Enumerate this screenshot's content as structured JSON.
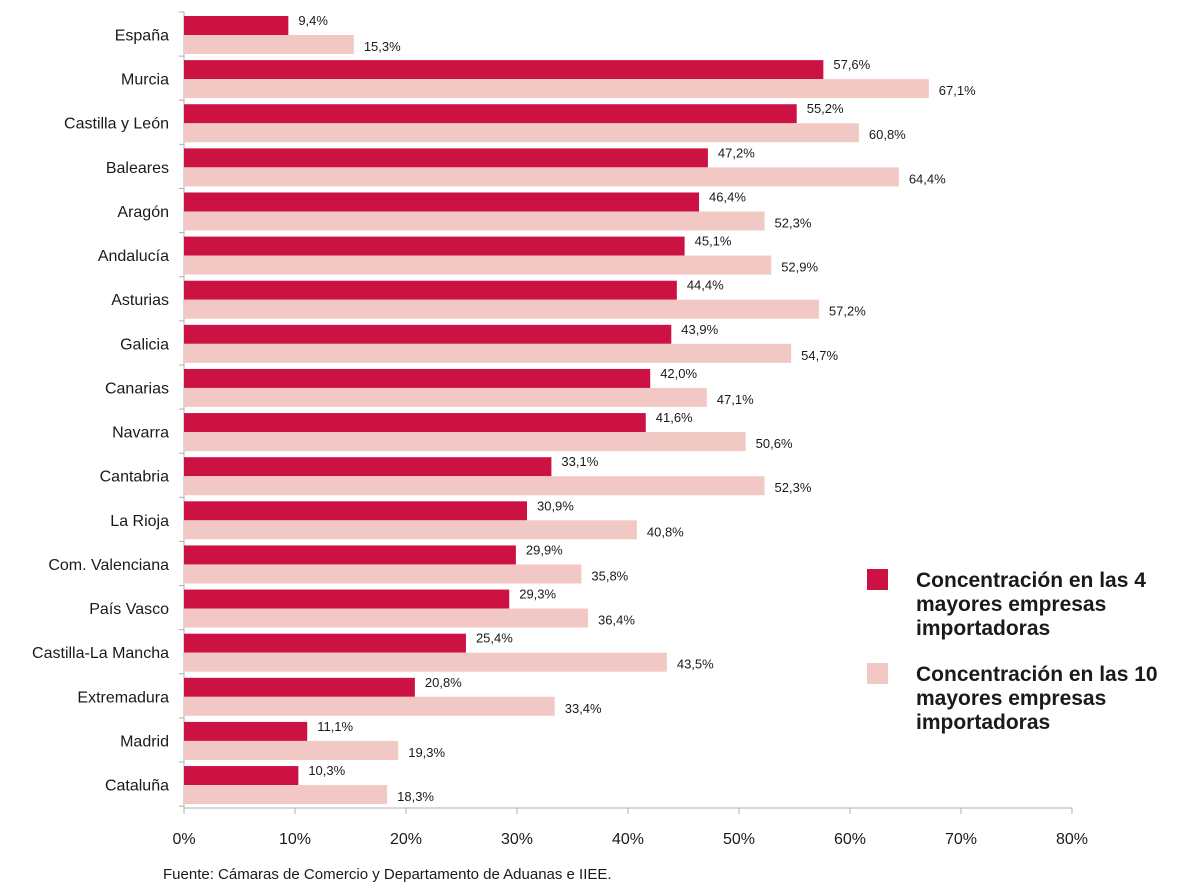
{
  "chart_data": {
    "type": "bar",
    "orientation": "horizontal",
    "categories": [
      "España",
      "Murcia",
      "Castilla y León",
      "Baleares",
      "Aragón",
      "Andalucía",
      "Asturias",
      "Galicia",
      "Canarias",
      "Navarra",
      "Cantabria",
      "La Rioja",
      "Com. Valenciana",
      "País Vasco",
      "Castilla-La Mancha",
      "Extremadura",
      "Madrid",
      "Cataluña"
    ],
    "series": [
      {
        "name": "Concentración en las 4 mayores empresas importadoras",
        "name_lines": [
          "Concentración en las 4",
          "mayores empresas",
          "importadoras"
        ],
        "color": "#cc1242",
        "values": [
          9.4,
          57.6,
          55.2,
          47.2,
          46.4,
          45.1,
          44.4,
          43.9,
          42.0,
          41.6,
          33.1,
          30.9,
          29.9,
          29.3,
          25.4,
          20.8,
          11.1,
          10.3
        ],
        "labels": [
          "9,4%",
          "57,6%",
          "55,2%",
          "47,2%",
          "46,4%",
          "45,1%",
          "44,4%",
          "43,9%",
          "42,0%",
          "41,6%",
          "33,1%",
          "30,9%",
          "29,9%",
          "29,3%",
          "25,4%",
          "20,8%",
          "11,1%",
          "10,3%"
        ]
      },
      {
        "name": "Concentración en las 10 mayores empresas importadoras",
        "name_lines": [
          "Concentración en las 10",
          "mayores empresas",
          "importadoras"
        ],
        "color": "#f2c8c4",
        "values": [
          15.3,
          67.1,
          60.8,
          64.4,
          52.3,
          52.9,
          57.2,
          54.7,
          47.1,
          50.6,
          52.3,
          40.8,
          35.8,
          36.4,
          43.5,
          33.4,
          19.3,
          18.3
        ],
        "labels": [
          "15,3%",
          "67,1%",
          "60,8%",
          "64,4%",
          "52,3%",
          "52,9%",
          "57,2%",
          "54,7%",
          "47,1%",
          "50,6%",
          "52,3%",
          "40,8%",
          "35,8%",
          "36,4%",
          "43,5%",
          "33,4%",
          "19,3%",
          "18,3%"
        ]
      }
    ],
    "xlim": [
      0,
      80
    ],
    "xticks": [
      0,
      10,
      20,
      30,
      40,
      50,
      60,
      70,
      80
    ],
    "xtick_labels": [
      "0%",
      "10%",
      "20%",
      "30%",
      "40%",
      "50%",
      "60%",
      "70%",
      "80%"
    ],
    "grid": false,
    "legend_position": "right"
  },
  "source": "Fuente: Cámaras de Comercio y Departamento de Aduanas e IIEE."
}
